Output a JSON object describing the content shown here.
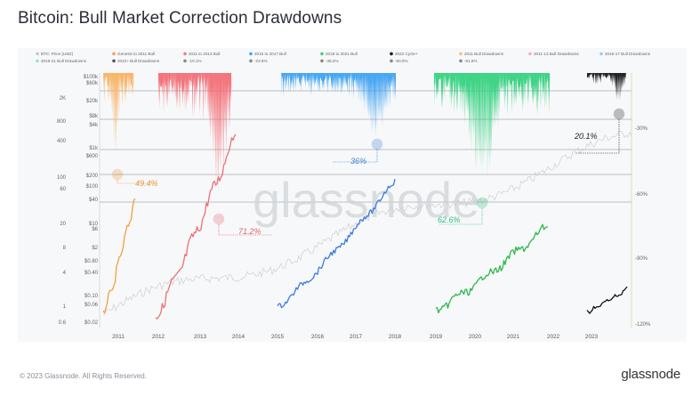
{
  "page": {
    "title": "Bitcoin: Bull Market Correction Drawdowns",
    "copyright": "© 2023 Glassnode. All Rights Reserved.",
    "brand": "glassnode",
    "watermark": "glassnode"
  },
  "chart_data": {
    "type": "line",
    "title": "Bitcoin: Bull Market Correction Drawdowns",
    "legend": [
      {
        "label": "BTC: Price [USD]",
        "color": "#c8c8c8"
      },
      {
        "label": "Genesis to 2011 Bull",
        "color": "#f5a64a"
      },
      {
        "label": "2011 to 2013 Bull",
        "color": "#f07b80"
      },
      {
        "label": "2015 to 2017 Bull",
        "color": "#4aa3ee"
      },
      {
        "label": "2018 to 2021 Bull",
        "color": "#3fcf7f"
      },
      {
        "label": "2022 Cycle+",
        "color": "#111111"
      },
      {
        "label": "2011 Bull Drawdowns",
        "color": "#f5c080"
      },
      {
        "label": "2011-13 Bull Drawdowns",
        "color": "#f4b0b3"
      },
      {
        "label": "2015-17 Bull Drawdowns",
        "color": "#9ccaf5"
      },
      {
        "label": "2018-21 Bull Drawdowns",
        "color": "#9be5bb"
      },
      {
        "label": "2022+ Bull Drawdowns",
        "color": "#555555"
      },
      {
        "label": "-10.1%",
        "color": "#888888"
      },
      {
        "label": "-23.6%",
        "color": "#888888"
      },
      {
        "label": "-38.2%",
        "color": "#888888"
      },
      {
        "label": "-50.0%",
        "color": "#888888"
      },
      {
        "label": "-61.8%",
        "color": "#888888"
      }
    ],
    "y_left_outer": [
      "$100k",
      "$60k",
      "$20k",
      "$8k",
      "$4k",
      "$1k",
      "$600",
      "$200",
      "$100",
      "$40",
      "$10",
      "$6",
      "$2",
      "$0.80",
      "$0.40",
      "$0.10",
      "$0.06",
      "$0.02"
    ],
    "y_left_inner": [
      "2K",
      "800",
      "400",
      "100",
      "60",
      "20",
      "8",
      "4",
      "1",
      "0.6"
    ],
    "y_right": [
      "-30%",
      "-60%",
      "-90%",
      "-120%"
    ],
    "x_ticks": [
      "2011",
      "2012",
      "2013",
      "2014",
      "2015",
      "2016",
      "2017",
      "2018",
      "2019",
      "2020",
      "2021",
      "2022",
      "2023"
    ],
    "annotations": [
      {
        "label": "49.4%",
        "color": "#e8963a"
      },
      {
        "label": "71.2%",
        "color": "#e0636c"
      },
      {
        "label": "36%",
        "color": "#3a7fd0"
      },
      {
        "label": "62.6%",
        "color": "#2fbf7a"
      },
      {
        "label": "20.1%",
        "color": "#222222"
      }
    ],
    "series": [
      {
        "name": "Genesis to 2011 Bull",
        "color": "#f0a040",
        "drawdown_color": "#f7b160",
        "max_drawdown": 49.4
      },
      {
        "name": "2011 to 2013 Bull",
        "color": "#ee6f74",
        "drawdown_color": "#f26a72",
        "max_drawdown": 71.2
      },
      {
        "name": "2015 to 2017 Bull",
        "color": "#3b7be0",
        "drawdown_color": "#3aa0f2",
        "max_drawdown": 36
      },
      {
        "name": "2018 to 2021 Bull",
        "color": "#2cb84a",
        "drawdown_color": "#2fd07c",
        "max_drawdown": 62.6
      },
      {
        "name": "2022 Cycle+",
        "color": "#111111",
        "drawdown_color": "#111111",
        "max_drawdown": 20.1
      }
    ]
  }
}
